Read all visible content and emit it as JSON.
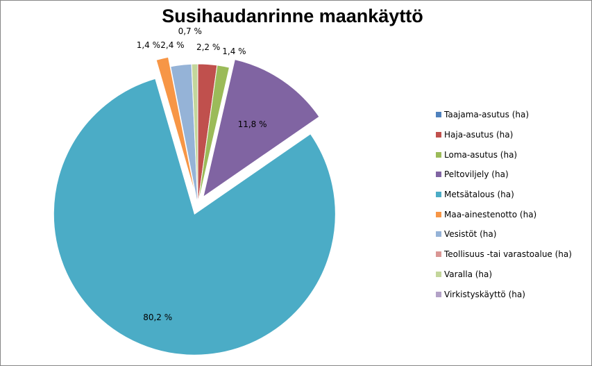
{
  "chart_data": {
    "type": "pie",
    "title": "Susihaudanrinne maankäyttö",
    "unit": "%",
    "slices": [
      {
        "name": "Taajama-asutus (ha)",
        "value": 0.0,
        "color": "#4F81BD",
        "label": ""
      },
      {
        "name": "Haja-asutus (ha)",
        "value": 2.2,
        "color": "#C0504D",
        "label": "2,2 %"
      },
      {
        "name": "Loma-asutus (ha)",
        "value": 1.4,
        "color": "#9BBB59",
        "label": "1,4 %"
      },
      {
        "name": "Peltoviljely (ha)",
        "value": 11.8,
        "color": "#8064A2",
        "label": "11,8 %"
      },
      {
        "name": "Metsätalous (ha)",
        "value": 80.2,
        "color": "#4BACC6",
        "label": "80,2 %"
      },
      {
        "name": "Maa-ainestenotto (ha)",
        "value": 1.4,
        "color": "#F79646",
        "label": "1,4 %"
      },
      {
        "name": "Vesistöt (ha)",
        "value": 2.4,
        "color": "#95B3D7",
        "label": "2,4 %"
      },
      {
        "name": "Teollisuus -tai varastoalue (ha)",
        "value": 0.0,
        "color": "#D99694",
        "label": ""
      },
      {
        "name": "Varalla (ha)",
        "value": 0.7,
        "color": "#C3D69B",
        "label": "0,7 %"
      },
      {
        "name": "Virkistyskäyttö (ha)",
        "value": 0.0,
        "color": "#B3A2C7",
        "label": ""
      }
    ],
    "exploded": [
      "Peltoviljely (ha)",
      "Metsätalous (ha)",
      "Maa-ainestenotto (ha)"
    ],
    "legend_position": "right"
  }
}
